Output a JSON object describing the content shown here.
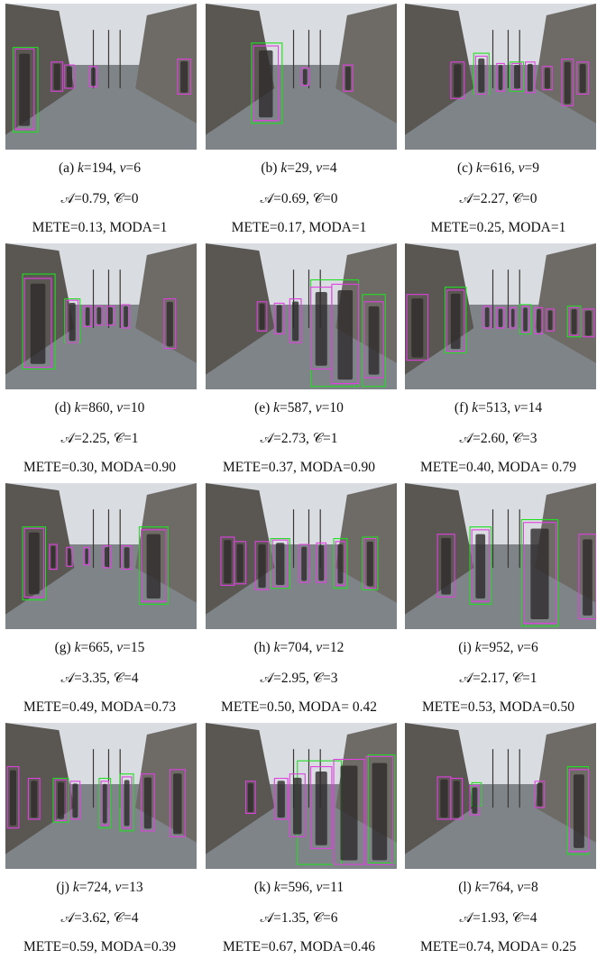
{
  "figure": {
    "panels": [
      {
        "label": "(a)",
        "k": "194",
        "v": "6",
        "A": "0.79",
        "C": "0",
        "METE": "0.13",
        "MODA": "1"
      },
      {
        "label": "(b)",
        "k": "29",
        "v": "4",
        "A": "0.69",
        "C": "0",
        "METE": "0.17",
        "MODA": "1"
      },
      {
        "label": "(c)",
        "k": "616",
        "v": "9",
        "A": "2.27",
        "C": "0",
        "METE": "0.25",
        "MODA": "1"
      },
      {
        "label": "(d)",
        "k": "860",
        "v": "10",
        "A": "2.25",
        "C": "1",
        "METE": "0.30",
        "MODA": "0.90"
      },
      {
        "label": "(e)",
        "k": "587",
        "v": "10",
        "A": "2.73",
        "C": "1",
        "METE": "0.37",
        "MODA": "0.90"
      },
      {
        "label": "(f)",
        "k": "513",
        "v": "14",
        "A": "2.60",
        "C": "3",
        "METE": "0.40",
        "MODA": " 0.79"
      },
      {
        "label": "(g)",
        "k": "665",
        "v": "15",
        "A": "3.35",
        "C": "4",
        "METE": "0.49",
        "MODA": "0.73"
      },
      {
        "label": "(h)",
        "k": "704",
        "v": "12",
        "A": "2.95",
        "C": "3",
        "METE": "0.50",
        "MODA": " 0.42"
      },
      {
        "label": "(i)",
        "k": "952",
        "v": "6",
        "A": "2.17",
        "C": "1",
        "METE": "0.53",
        "MODA": "0.50"
      },
      {
        "label": "(j)",
        "k": "724",
        "v": "13",
        "A": "3.62",
        "C": "4",
        "METE": "0.59",
        "MODA": "0.39"
      },
      {
        "label": "(k)",
        "k": "596",
        "v": "11",
        "A": "1.35",
        "C": "6",
        "METE": "0.67",
        "MODA": "0.46"
      },
      {
        "label": "(l)",
        "k": "764",
        "v": "8",
        "A": "1.93",
        "C": "4",
        "METE": "0.74",
        "MODA": " 0.25"
      }
    ]
  },
  "colors": {
    "ground_truth_box": "#22dd22",
    "detection_box": "#e040e0",
    "sky": "#d9dde2",
    "street": "#7f8489",
    "building": "#5a5753"
  },
  "boxes": [
    {
      "gt": [
        [
          0.04,
          0.3,
          0.17,
          0.88
        ]
      ],
      "det": [
        [
          0.05,
          0.31,
          0.15,
          0.86
        ],
        [
          0.24,
          0.4,
          0.3,
          0.6
        ],
        [
          0.31,
          0.42,
          0.36,
          0.58
        ],
        [
          0.44,
          0.43,
          0.48,
          0.57
        ],
        [
          0.9,
          0.38,
          0.97,
          0.62
        ]
      ]
    },
    {
      "gt": [
        [
          0.24,
          0.27,
          0.4,
          0.82
        ]
      ],
      "det": [
        [
          0.25,
          0.29,
          0.38,
          0.8
        ],
        [
          0.5,
          0.44,
          0.54,
          0.56
        ],
        [
          0.72,
          0.42,
          0.77,
          0.6
        ]
      ]
    },
    {
      "gt": [
        [
          0.36,
          0.34,
          0.44,
          0.62
        ],
        [
          0.55,
          0.4,
          0.62,
          0.6
        ]
      ],
      "det": [
        [
          0.24,
          0.4,
          0.31,
          0.65
        ],
        [
          0.37,
          0.36,
          0.43,
          0.62
        ],
        [
          0.48,
          0.41,
          0.52,
          0.6
        ],
        [
          0.56,
          0.41,
          0.61,
          0.59
        ],
        [
          0.63,
          0.4,
          0.68,
          0.61
        ],
        [
          0.72,
          0.43,
          0.77,
          0.59
        ],
        [
          0.82,
          0.38,
          0.88,
          0.7
        ],
        [
          0.9,
          0.4,
          0.96,
          0.62
        ]
      ]
    },
    {
      "gt": [
        [
          0.09,
          0.21,
          0.26,
          0.86
        ],
        [
          0.31,
          0.38,
          0.39,
          0.68
        ]
      ],
      "det": [
        [
          0.1,
          0.24,
          0.24,
          0.85
        ],
        [
          0.32,
          0.39,
          0.38,
          0.68
        ],
        [
          0.41,
          0.43,
          0.45,
          0.57
        ],
        [
          0.47,
          0.43,
          0.51,
          0.56
        ],
        [
          0.53,
          0.43,
          0.57,
          0.56
        ],
        [
          0.61,
          0.42,
          0.65,
          0.58
        ],
        [
          0.83,
          0.38,
          0.89,
          0.72
        ]
      ]
    },
    {
      "gt": [
        [
          0.55,
          0.25,
          0.8,
          0.98
        ],
        [
          0.82,
          0.35,
          0.94,
          0.98
        ]
      ],
      "det": [
        [
          0.27,
          0.4,
          0.32,
          0.6
        ],
        [
          0.36,
          0.41,
          0.41,
          0.62
        ],
        [
          0.44,
          0.38,
          0.5,
          0.68
        ],
        [
          0.55,
          0.3,
          0.66,
          0.86
        ],
        [
          0.66,
          0.28,
          0.8,
          0.96
        ],
        [
          0.83,
          0.4,
          0.93,
          0.92
        ]
      ]
    },
    {
      "gt": [
        [
          0.21,
          0.3,
          0.32,
          0.75
        ],
        [
          0.6,
          0.42,
          0.66,
          0.62
        ],
        [
          0.85,
          0.43,
          0.92,
          0.64
        ]
      ],
      "det": [
        [
          0.01,
          0.35,
          0.12,
          0.8
        ],
        [
          0.22,
          0.32,
          0.31,
          0.74
        ],
        [
          0.41,
          0.43,
          0.45,
          0.58
        ],
        [
          0.48,
          0.44,
          0.52,
          0.58
        ],
        [
          0.55,
          0.44,
          0.58,
          0.58
        ],
        [
          0.61,
          0.43,
          0.65,
          0.61
        ],
        [
          0.68,
          0.44,
          0.72,
          0.62
        ],
        [
          0.74,
          0.45,
          0.78,
          0.6
        ],
        [
          0.86,
          0.44,
          0.91,
          0.63
        ],
        [
          0.93,
          0.45,
          0.99,
          0.64
        ]
      ]
    },
    {
      "gt": [
        [
          0.09,
          0.3,
          0.21,
          0.8
        ],
        [
          0.7,
          0.3,
          0.85,
          0.83
        ]
      ],
      "det": [
        [
          0.1,
          0.31,
          0.2,
          0.78
        ],
        [
          0.23,
          0.42,
          0.27,
          0.59
        ],
        [
          0.32,
          0.44,
          0.35,
          0.57
        ],
        [
          0.41,
          0.44,
          0.44,
          0.56
        ],
        [
          0.51,
          0.43,
          0.55,
          0.58
        ],
        [
          0.61,
          0.43,
          0.66,
          0.59
        ],
        [
          0.71,
          0.32,
          0.84,
          0.81
        ]
      ]
    },
    {
      "gt": [
        [
          0.34,
          0.38,
          0.44,
          0.72
        ],
        [
          0.67,
          0.38,
          0.74,
          0.72
        ],
        [
          0.82,
          0.37,
          0.9,
          0.73
        ]
      ],
      "det": [
        [
          0.08,
          0.37,
          0.15,
          0.7
        ],
        [
          0.15,
          0.4,
          0.21,
          0.69
        ],
        [
          0.26,
          0.4,
          0.33,
          0.73
        ],
        [
          0.35,
          0.39,
          0.43,
          0.71
        ],
        [
          0.49,
          0.42,
          0.54,
          0.68
        ],
        [
          0.58,
          0.41,
          0.63,
          0.68
        ],
        [
          0.68,
          0.4,
          0.73,
          0.7
        ],
        [
          0.83,
          0.38,
          0.89,
          0.72
        ]
      ]
    },
    {
      "gt": [
        [
          0.34,
          0.3,
          0.45,
          0.83
        ],
        [
          0.61,
          0.25,
          0.8,
          0.98
        ]
      ],
      "det": [
        [
          0.17,
          0.35,
          0.26,
          0.78
        ],
        [
          0.35,
          0.32,
          0.44,
          0.81
        ],
        [
          0.62,
          0.27,
          0.79,
          0.96
        ],
        [
          0.91,
          0.35,
          1.0,
          0.93
        ]
      ]
    },
    {
      "gt": [
        [
          0.25,
          0.38,
          0.33,
          0.68
        ],
        [
          0.49,
          0.38,
          0.55,
          0.72
        ],
        [
          0.6,
          0.35,
          0.67,
          0.74
        ]
      ],
      "det": [
        [
          0.01,
          0.3,
          0.07,
          0.72
        ],
        [
          0.12,
          0.38,
          0.18,
          0.66
        ],
        [
          0.26,
          0.39,
          0.32,
          0.67
        ],
        [
          0.34,
          0.4,
          0.39,
          0.66
        ],
        [
          0.5,
          0.4,
          0.54,
          0.7
        ],
        [
          0.61,
          0.37,
          0.66,
          0.72
        ],
        [
          0.71,
          0.35,
          0.78,
          0.74
        ],
        [
          0.86,
          0.32,
          0.94,
          0.78
        ]
      ]
    },
    {
      "gt": [
        [
          0.48,
          0.26,
          0.71,
          0.97
        ],
        [
          0.85,
          0.22,
          0.99,
          0.96
        ]
      ],
      "det": [
        [
          0.21,
          0.4,
          0.26,
          0.62
        ],
        [
          0.36,
          0.38,
          0.43,
          0.66
        ],
        [
          0.44,
          0.35,
          0.52,
          0.78
        ],
        [
          0.55,
          0.3,
          0.66,
          0.86
        ],
        [
          0.67,
          0.25,
          0.83,
          0.97
        ],
        [
          0.84,
          0.23,
          0.98,
          0.97
        ]
      ]
    },
    {
      "gt": [
        [
          0.35,
          0.41,
          0.4,
          0.57
        ],
        [
          0.85,
          0.3,
          0.96,
          0.9
        ]
      ],
      "det": [
        [
          0.17,
          0.37,
          0.24,
          0.66
        ],
        [
          0.24,
          0.38,
          0.3,
          0.66
        ],
        [
          0.34,
          0.43,
          0.39,
          0.63
        ],
        [
          0.68,
          0.4,
          0.73,
          0.58
        ],
        [
          0.86,
          0.32,
          0.96,
          0.88
        ]
      ]
    }
  ]
}
